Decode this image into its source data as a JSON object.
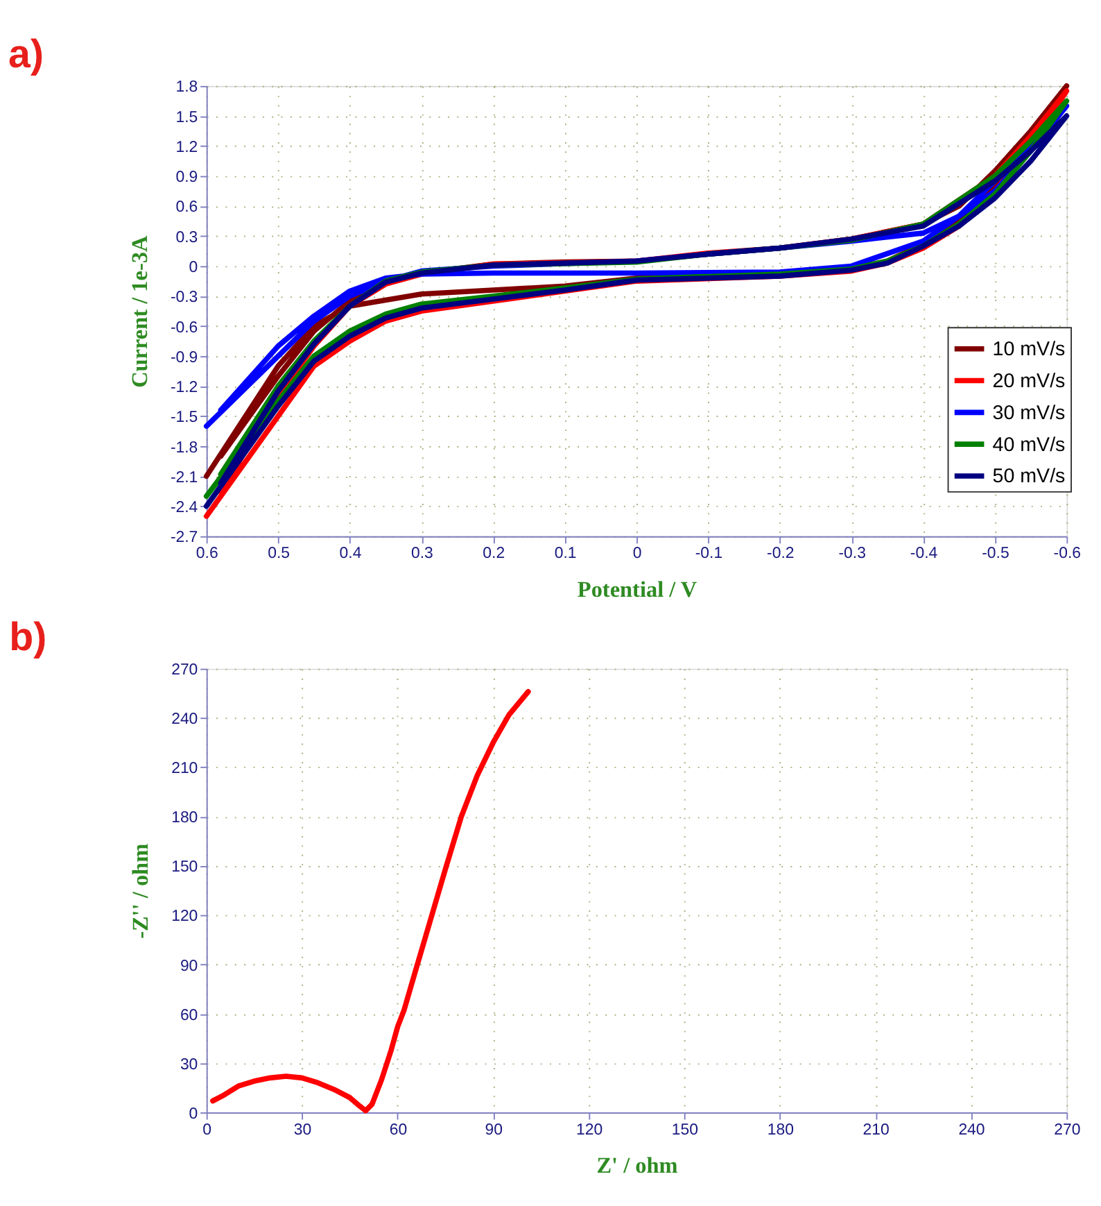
{
  "chart_data": [
    {
      "type": "line",
      "annotations": [
        "a)"
      ],
      "xlabel": "Potential / V",
      "ylabel": "Current / 1e-3A",
      "xlim": [
        0.6,
        -0.6
      ],
      "xticks": [
        0.6,
        0.5,
        0.4,
        0.3,
        0.2,
        0.1,
        0,
        -0.1,
        -0.2,
        -0.3,
        -0.4,
        -0.5,
        -0.6
      ],
      "ylim": [
        -2.7,
        1.8
      ],
      "yticks": [
        -2.7,
        -2.4,
        -2.1,
        -1.8,
        -1.5,
        -1.2,
        -0.9,
        -0.6,
        -0.3,
        0,
        0.3,
        0.6,
        0.9,
        1.2,
        1.5,
        1.8
      ],
      "grid": true,
      "legend": "right",
      "line_style": "solid",
      "series": [
        {
          "name": "10 mV/s",
          "color": "#800000",
          "x": [
            0.58,
            0.5,
            0.45,
            0.4,
            0.35,
            0.3,
            0.2,
            0.1,
            0,
            -0.1,
            -0.2,
            -0.3,
            -0.4,
            -0.45,
            -0.5,
            -0.55,
            -0.6,
            -0.55,
            -0.5,
            -0.45,
            -0.4,
            -0.35,
            -0.3,
            -0.2,
            -0.1,
            0,
            0.1,
            0.2,
            0.3,
            0.4,
            0.45,
            0.5,
            0.6
          ],
          "values": [
            -1.9,
            -1.1,
            -0.65,
            -0.35,
            -0.15,
            -0.07,
            0.02,
            0.04,
            0.05,
            0.12,
            0.18,
            0.27,
            0.42,
            0.6,
            0.95,
            1.35,
            1.8,
            1.25,
            0.8,
            0.45,
            0.22,
            0.05,
            -0.03,
            -0.07,
            -0.1,
            -0.12,
            -0.2,
            -0.24,
            -0.28,
            -0.4,
            -0.6,
            -1.0,
            -2.1
          ]
        },
        {
          "name": "20 mV/s",
          "color": "#ff0000",
          "x": [
            0.58,
            0.5,
            0.45,
            0.4,
            0.35,
            0.3,
            0.2,
            0,
            -0.1,
            -0.2,
            -0.3,
            -0.4,
            -0.5,
            -0.55,
            -0.6,
            -0.55,
            -0.5,
            -0.45,
            -0.4,
            -0.35,
            -0.3,
            -0.2,
            0,
            0.1,
            0.2,
            0.3,
            0.35,
            0.4,
            0.45,
            0.5,
            0.6
          ],
          "values": [
            -2.26,
            -1.3,
            -0.8,
            -0.4,
            -0.18,
            -0.08,
            0.02,
            0.05,
            0.13,
            0.18,
            0.27,
            0.42,
            0.9,
            1.3,
            1.75,
            1.2,
            0.75,
            0.4,
            0.18,
            0.03,
            -0.05,
            -0.1,
            -0.15,
            -0.25,
            -0.35,
            -0.45,
            -0.55,
            -0.75,
            -1.0,
            -1.5,
            -2.5
          ]
        },
        {
          "name": "30 mV/s",
          "color": "#0000ff",
          "x": [
            0.58,
            0.5,
            0.45,
            0.4,
            0.35,
            0.3,
            0.2,
            0,
            -0.2,
            -0.3,
            -0.4,
            -0.45,
            -0.5,
            -0.55,
            -0.6,
            -0.55,
            -0.5,
            -0.45,
            -0.4,
            -0.3,
            -0.2,
            -0.1,
            0,
            0.2,
            0.3,
            0.35,
            0.4,
            0.45,
            0.5,
            0.6
          ],
          "values": [
            -1.44,
            -0.8,
            -0.5,
            -0.25,
            -0.12,
            -0.08,
            -0.07,
            -0.07,
            -0.06,
            0.0,
            0.25,
            0.5,
            0.85,
            1.2,
            1.6,
            1.15,
            0.75,
            0.5,
            0.33,
            0.25,
            0.18,
            0.12,
            0.05,
            0.0,
            -0.05,
            -0.15,
            -0.3,
            -0.55,
            -0.9,
            -1.6
          ]
        },
        {
          "name": "40 mV/s",
          "color": "#008000",
          "x": [
            0.58,
            0.5,
            0.45,
            0.4,
            0.35,
            0.3,
            0.2,
            0,
            -0.1,
            -0.2,
            -0.3,
            -0.4,
            -0.5,
            -0.55,
            -0.6,
            -0.55,
            -0.5,
            -0.45,
            -0.4,
            -0.35,
            -0.3,
            -0.2,
            0,
            0.1,
            0.2,
            0.3,
            0.35,
            0.4,
            0.45,
            0.5,
            0.6
          ],
          "values": [
            -2.08,
            -1.2,
            -0.75,
            -0.4,
            -0.15,
            -0.06,
            0.01,
            0.04,
            0.12,
            0.18,
            0.26,
            0.42,
            0.9,
            1.25,
            1.65,
            1.15,
            0.72,
            0.42,
            0.2,
            0.05,
            -0.03,
            -0.08,
            -0.13,
            -0.22,
            -0.3,
            -0.38,
            -0.48,
            -0.65,
            -0.9,
            -1.35,
            -2.3
          ]
        },
        {
          "name": "50 mV/s",
          "color": "#000080",
          "x": [
            0.58,
            0.5,
            0.45,
            0.4,
            0.35,
            0.3,
            0.2,
            0,
            -0.1,
            -0.2,
            -0.3,
            -0.4,
            -0.5,
            -0.55,
            -0.6,
            -0.55,
            -0.5,
            -0.45,
            -0.4,
            -0.35,
            -0.3,
            -0.2,
            0,
            0.1,
            0.2,
            0.3,
            0.35,
            0.4,
            0.45,
            0.5,
            0.6
          ],
          "values": [
            -2.17,
            -1.25,
            -0.78,
            -0.4,
            -0.16,
            -0.07,
            0.01,
            0.05,
            0.12,
            0.18,
            0.27,
            0.4,
            0.85,
            1.15,
            1.5,
            1.05,
            0.68,
            0.4,
            0.2,
            0.03,
            -0.04,
            -0.1,
            -0.14,
            -0.24,
            -0.33,
            -0.42,
            -0.52,
            -0.7,
            -0.95,
            -1.4,
            -2.4
          ]
        }
      ]
    },
    {
      "type": "line",
      "annotations": [
        "b)"
      ],
      "xlabel": "Z' / ohm",
      "ylabel": "-Z'' / ohm",
      "xlim": [
        0,
        270
      ],
      "xticks": [
        0,
        30,
        60,
        90,
        120,
        150,
        180,
        210,
        240,
        270
      ],
      "ylim": [
        0,
        270
      ],
      "yticks": [
        0,
        30,
        60,
        90,
        120,
        150,
        180,
        210,
        240,
        270
      ],
      "grid": true,
      "line_style": "solid",
      "series": [
        {
          "color": "#ff0000",
          "x": [
            2,
            5,
            10,
            15,
            20,
            25,
            30,
            35,
            40,
            45,
            48,
            50,
            52,
            55,
            58,
            60,
            62,
            65,
            70,
            75,
            80,
            85,
            90,
            95,
            101
          ],
          "values": [
            7,
            10,
            16,
            19,
            21,
            22,
            21,
            18,
            14,
            9,
            4,
            1,
            5,
            20,
            38,
            52,
            62,
            82,
            115,
            148,
            180,
            205,
            225,
            242,
            256
          ]
        }
      ]
    }
  ]
}
